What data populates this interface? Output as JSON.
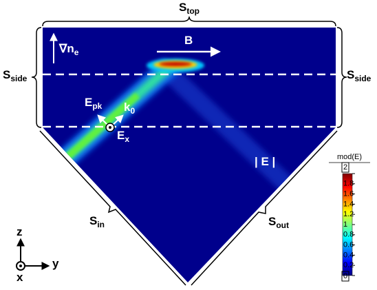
{
  "labels": {
    "top": {
      "base": "S",
      "sub": "top"
    },
    "side_left": {
      "base": "S",
      "sub": "side"
    },
    "side_right": {
      "base": "S",
      "sub": "side"
    },
    "grad": {
      "base": "∇n",
      "sub": "e"
    },
    "field": {
      "base": "B"
    },
    "epk": {
      "base": "E",
      "sub": "pk"
    },
    "k0": {
      "base": "k",
      "sub": "0"
    },
    "ex": {
      "base": "E",
      "sub": "x"
    },
    "mod": {
      "base": "| E |"
    },
    "in": {
      "base": "S",
      "sub": "in"
    },
    "out": {
      "base": "S",
      "sub": "out"
    },
    "axis_z": {
      "base": "z"
    },
    "axis_y": {
      "base": "y"
    },
    "axis_x": {
      "base": "x"
    }
  },
  "colorbar": {
    "title": "mod(E)",
    "ticks": [
      2,
      1.8,
      1.6,
      1.4,
      1.2,
      1,
      0.8,
      0.6,
      0.4,
      0.2,
      0
    ]
  }
}
